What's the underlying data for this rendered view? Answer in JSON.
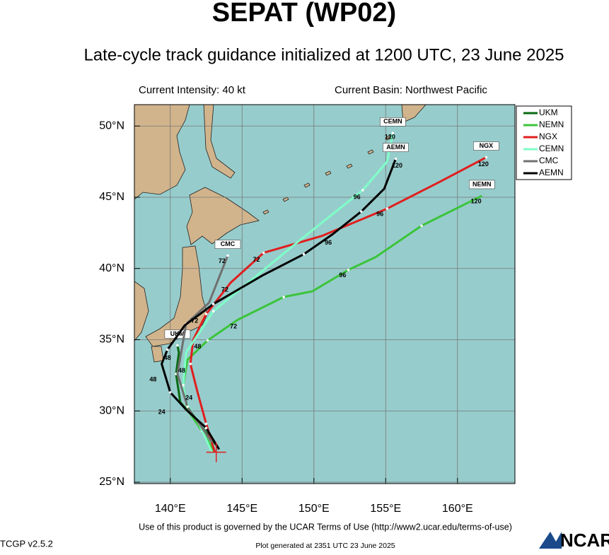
{
  "title": "SEPAT (WP02)",
  "subtitle": "Late-cycle track guidance initialized at 1200 UTC, 23 June 2025",
  "intensity": "Current Intensity: 40 kt",
  "basin": "Current Basin: Northwest Pacific",
  "footer": "Use of this product is governed by the UCAR Terms of Use (http://www2.ucar.edu/terms-of-use)",
  "version": "TCGP v2.5.2",
  "generated": "Plot generated at 2351 UTC   23 June 2025",
  "logo": "NCAR",
  "chart_data": {
    "type": "track",
    "xlim": [
      137.5,
      164
    ],
    "ylim": [
      24.9,
      51.5
    ],
    "xticks": [
      {
        "value": 140,
        "label": "140°E"
      },
      {
        "value": 145,
        "label": "145°E"
      },
      {
        "value": 150,
        "label": "150°E"
      },
      {
        "value": 155,
        "label": "155°E"
      },
      {
        "value": 160,
        "label": "160°E"
      }
    ],
    "yticks": [
      {
        "value": 25,
        "label": "25°N"
      },
      {
        "value": 30,
        "label": "30°N"
      },
      {
        "value": 35,
        "label": "35°N"
      },
      {
        "value": 40,
        "label": "40°N"
      },
      {
        "value": 45,
        "label": "45°N"
      },
      {
        "value": 50,
        "label": "50°N"
      }
    ],
    "grid": true,
    "legend": "upper right",
    "initial_position": {
      "lon": 143.2,
      "lat": 27.1
    },
    "series": [
      {
        "name": "UKM",
        "color": "#0a6b12",
        "x": [
          143.2,
          142.0,
          140.7,
          140.4,
          140.6,
          140.5
        ],
        "values": [
          27.6,
          29.1,
          30.6,
          32.6,
          34.1,
          34.6
        ]
      },
      {
        "name": "NEMN",
        "color": "#3cc43c",
        "x": [
          143.1,
          142.2,
          141.2,
          140.9,
          141.2,
          142.6,
          144.7,
          147.9,
          149.9,
          152.4,
          154.3,
          157.5,
          161.7
        ],
        "values": [
          27.1,
          28.6,
          30.1,
          31.8,
          33.6,
          34.95,
          36.4,
          38.0,
          38.4,
          39.9,
          40.8,
          43.0,
          45.1
        ]
      },
      {
        "name": "NGX",
        "color": "#e01e1e",
        "x": [
          143.1,
          142.5,
          141.9,
          141.4,
          141.6,
          142.5,
          144.2,
          146.5,
          150.6,
          155.1,
          158.8,
          162.0
        ],
        "values": [
          27.1,
          29.1,
          31.3,
          33.3,
          35.0,
          36.8,
          39.0,
          41.1,
          42.3,
          44.2,
          46.1,
          47.8
        ]
      },
      {
        "name": "CEMN",
        "color": "#7fffc8",
        "x": [
          142.9,
          142.0,
          141.1,
          140.9,
          141.1,
          143.0,
          148.8,
          153.4,
          155.1,
          155.5
        ],
        "values": [
          27.1,
          29.1,
          30.6,
          31.8,
          34.1,
          37.0,
          41.8,
          45.5,
          47.5,
          49.5
        ]
      },
      {
        "name": "CMC",
        "color": "#707070",
        "x": [
          142.9,
          141.2,
          140.5,
          141.1,
          142.7,
          144.0
        ],
        "values": [
          27.8,
          30.3,
          32.6,
          36.1,
          37.6,
          40.9
        ]
      },
      {
        "name": "AEMN",
        "color": "#000000",
        "x": [
          143.4,
          142.5,
          141.1,
          140.0,
          139.4,
          139.8,
          141.0,
          143.0,
          146.4,
          149.3,
          151.3,
          153.3,
          154.9,
          155.7
        ],
        "values": [
          27.3,
          28.8,
          30.1,
          31.3,
          33.3,
          34.3,
          36.0,
          37.5,
          39.5,
          41.0,
          42.4,
          44.0,
          45.6,
          47.7
        ]
      }
    ],
    "annotations": [
      {
        "text": "120",
        "lon": 161.8,
        "lat": 47.3
      },
      {
        "text": "120",
        "lon": 161.3,
        "lat": 44.7
      },
      {
        "text": "120",
        "lon": 155.8,
        "lat": 47.2
      },
      {
        "text": "120",
        "lon": 155.3,
        "lat": 49.2
      },
      {
        "text": "96",
        "lon": 154.6,
        "lat": 43.8
      },
      {
        "text": "96",
        "lon": 153.0,
        "lat": 45.0
      },
      {
        "text": "96",
        "lon": 151.0,
        "lat": 41.8
      },
      {
        "text": "96",
        "lon": 152.0,
        "lat": 39.5
      },
      {
        "text": "72",
        "lon": 146.0,
        "lat": 40.6
      },
      {
        "text": "72",
        "lon": 143.6,
        "lat": 40.5
      },
      {
        "text": "72",
        "lon": 143.8,
        "lat": 38.5
      },
      {
        "text": "72",
        "lon": 144.4,
        "lat": 35.9
      },
      {
        "text": "72",
        "lon": 141.7,
        "lat": 36.3
      },
      {
        "text": "48",
        "lon": 141.9,
        "lat": 34.5
      },
      {
        "text": "48",
        "lon": 140.8,
        "lat": 32.8
      },
      {
        "text": "48",
        "lon": 138.8,
        "lat": 32.2
      },
      {
        "text": "48",
        "lon": 139.8,
        "lat": 33.7
      },
      {
        "text": "24",
        "lon": 141.3,
        "lat": 30.9
      },
      {
        "text": "24",
        "lon": 139.4,
        "lat": 29.9
      }
    ]
  }
}
